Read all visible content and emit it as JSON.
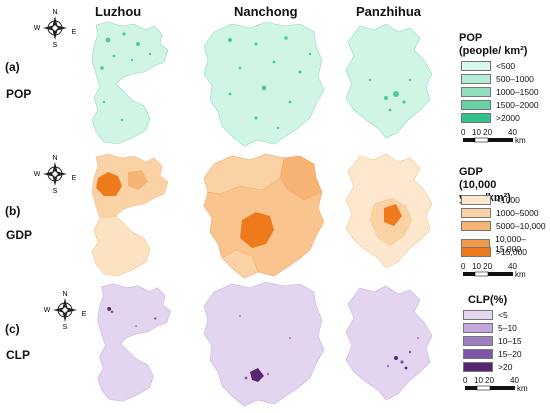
{
  "cities": [
    "Luzhou",
    "Nanchong",
    "Panzhihua"
  ],
  "rows": [
    {
      "letter": "(a)",
      "label": "POP",
      "legend": {
        "title1": "POP",
        "title2": "(people/ km²)",
        "items": [
          {
            "label": "<500",
            "color": "#d8f6ea"
          },
          {
            "label": "500–1000",
            "color": "#b3ecd4"
          },
          {
            "label": "1000–1500",
            "color": "#8edfbd"
          },
          {
            "label": "1500–2000",
            "color": "#66d2a6"
          },
          {
            "label": ">2000",
            "color": "#33c18c"
          }
        ]
      },
      "base_color": "#d0f5e5",
      "hot_color": "#4dcc99"
    },
    {
      "letter": "(b)",
      "label": "GDP",
      "legend": {
        "title1": "GDP",
        "title2": "(10,000 yuan/km²)",
        "items": [
          {
            "label": "<1000",
            "color": "#fde8cf"
          },
          {
            "label": "1000–5000",
            "color": "#fbd2a6"
          },
          {
            "label": "5000–10,000",
            "color": "#f7b373"
          },
          {
            "label": "10,000–15,000",
            "color": "#f39a4a"
          },
          {
            "label": ">15,000",
            "color": "#ee7a1c"
          }
        ]
      },
      "base_color": "#fcdcb6",
      "hot_color": "#ee7a1c"
    },
    {
      "letter": "(c)",
      "label": "CLP",
      "legend": {
        "title1": "CLP(%)",
        "title2": "",
        "items": [
          {
            "label": "<5",
            "color": "#e4d6f0"
          },
          {
            "label": "5–10",
            "color": "#c2a8da"
          },
          {
            "label": "10–15",
            "color": "#a07ec2"
          },
          {
            "label": "15–20",
            "color": "#7d55a6"
          },
          {
            "label": ">20",
            "color": "#58266f"
          }
        ]
      },
      "base_color": "#e3d5f0",
      "hot_color": "#58266f"
    }
  ],
  "scale": {
    "t0": "0",
    "t1": "10 20",
    "t2": "40",
    "unit": "km"
  },
  "compass": {
    "n": "N",
    "s": "S",
    "e": "E",
    "w": "W"
  }
}
